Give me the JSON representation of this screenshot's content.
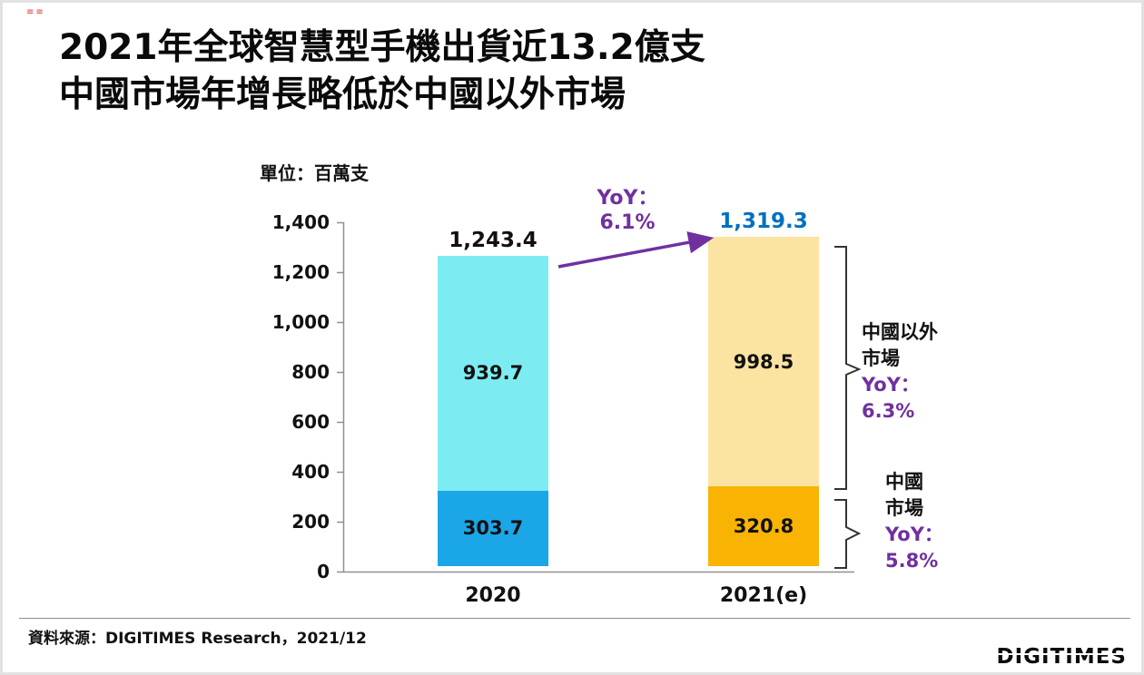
{
  "corner_mark": "≡≡",
  "title": {
    "line1": "2021年全球智慧型手機出貨近13.2億支",
    "line2": "中國市場年增長略低於中國以外市場"
  },
  "chart_data": {
    "type": "bar",
    "stacked": true,
    "title": "2021年全球智慧型手機出貨近13.2億支 中國市場年增長略低於中國以外市場",
    "unit_label": "單位：百萬支",
    "categories": [
      "2020",
      "2021(e)"
    ],
    "series": [
      {
        "name": "中國以外市場",
        "values": [
          939.7,
          998.5
        ],
        "colors": [
          "#7CECF2",
          "#FBE3A1"
        ]
      },
      {
        "name": "中國市場",
        "values": [
          303.7,
          320.8
        ],
        "colors": [
          "#1BA6E8",
          "#F9B303"
        ]
      }
    ],
    "totals": [
      "1,243.4",
      "1,319.3"
    ],
    "total_colors": [
      "#111111",
      "#0070C0"
    ],
    "ylim": [
      0,
      1400
    ],
    "ytick_labels": [
      "1,400",
      "1,200",
      "1,000",
      "800",
      "600",
      "400",
      "200",
      "0"
    ],
    "grid": false,
    "legend": "none",
    "accent_purple": "#7030A0",
    "annotations": {
      "total_yoy": {
        "label": "YoY：",
        "value": "6.1%"
      },
      "outside_china": {
        "line1": "中國以外",
        "line2": "市場",
        "yoy_label": "YoY：",
        "yoy_value": "6.3%"
      },
      "china": {
        "line1": "中國",
        "line2": "市場",
        "yoy_label": "YoY：",
        "yoy_value": "5.8%"
      }
    }
  },
  "footer": {
    "source": "資料來源：DIGITIMES Research，2021/12",
    "logo_text": "DIGITIMES"
  }
}
